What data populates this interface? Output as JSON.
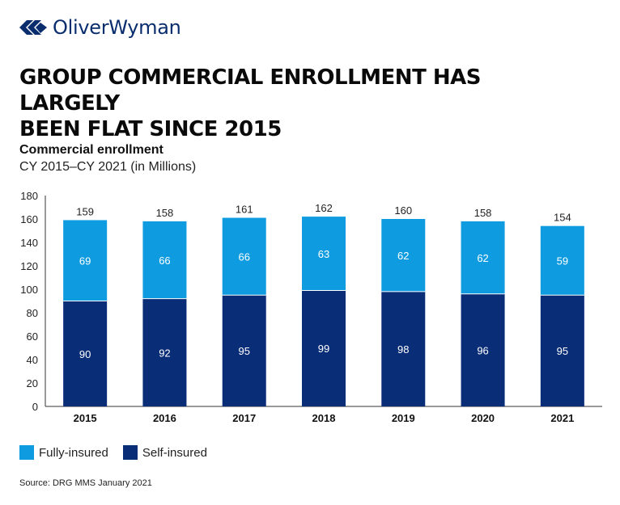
{
  "brand": {
    "name": "OliverWyman",
    "logo_icon": "oliver-wyman-mark-icon",
    "color": "#0a2d6e"
  },
  "headline": {
    "line1": "GROUP COMMERCIAL ENROLLMENT HAS LARGELY",
    "line2": "BEEN FLAT SINCE 2015"
  },
  "subtitle": "Commercial enrollment",
  "subtitle2": "CY 2015–CY 2021 (in Millions)",
  "legend": [
    {
      "label": "Fully-insured",
      "color": "#0f9be0"
    },
    {
      "label": "Self-insured",
      "color": "#0a2d78"
    }
  ],
  "source": "Source: DRG MMS January 2021",
  "chart_data": {
    "type": "bar",
    "stacked": true,
    "title": "Commercial enrollment",
    "subtitle": "CY 2015–CY 2021 (in Millions)",
    "xlabel": "",
    "ylabel": "",
    "categories": [
      "2015",
      "2016",
      "2017",
      "2018",
      "2019",
      "2020",
      "2021"
    ],
    "series": [
      {
        "name": "Self-insured",
        "color": "#0a2d78",
        "values": [
          90,
          92,
          95,
          99,
          98,
          96,
          95
        ]
      },
      {
        "name": "Fully-insured",
        "color": "#0f9be0",
        "values": [
          69,
          66,
          66,
          63,
          62,
          62,
          59
        ]
      }
    ],
    "totals": [
      159,
      158,
      161,
      162,
      160,
      158,
      154
    ],
    "ylim": [
      0,
      180
    ],
    "yticks": [
      0,
      20,
      40,
      60,
      80,
      100,
      120,
      140,
      160,
      180
    ],
    "grid": false,
    "legend_position": "bottom-left"
  }
}
